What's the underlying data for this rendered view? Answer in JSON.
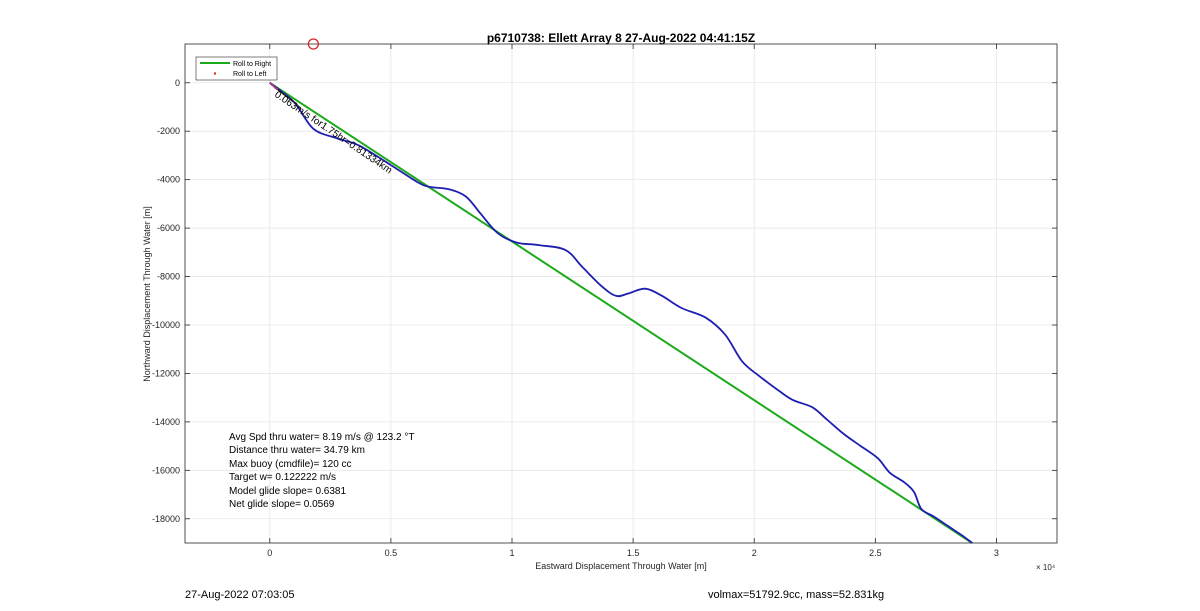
{
  "chart_data": {
    "type": "line",
    "title": "p6710738: Ellett Array 8 27-Aug-2022 04:41:15Z",
    "xlabel": "Eastward Displacement Through Water [m]",
    "ylabel": "Northward Displacement Through Water [m]",
    "x_exponent_label": "× 10⁴",
    "xlim": [
      -3500,
      32500
    ],
    "ylim": [
      -19000,
      1600
    ],
    "grid": true,
    "x_ticks": [
      0,
      5000,
      10000,
      15000,
      20000,
      25000,
      30000
    ],
    "x_tick_labels": [
      "0",
      "0.5",
      "1",
      "1.5",
      "2",
      "2.5",
      "3"
    ],
    "y_ticks": [
      0,
      -2000,
      -4000,
      -6000,
      -8000,
      -10000,
      -12000,
      -14000,
      -16000,
      -18000
    ],
    "y_tick_labels": [
      "0",
      "-2000",
      "-4000",
      "-6000",
      "-8000",
      "-10000",
      "-12000",
      "-14000",
      "-16000",
      "-18000"
    ],
    "legend": {
      "placement": "top-left",
      "entries": [
        {
          "label": "Roll to Right",
          "color": "#1aaa1a",
          "style": "line"
        },
        {
          "label": "Roll to Left",
          "color": "#d62728",
          "style": "dot"
        }
      ]
    },
    "series": [
      {
        "color": "#1aaa1a",
        "x": [
          0,
          29000
        ],
        "y": [
          0,
          -19000
        ]
      },
      {
        "color": "#1e1eb0",
        "x": [
          0,
          1000,
          1800,
          2800,
          3700,
          5000,
          6100,
          6600,
          7400,
          8100,
          8700,
          9400,
          10200,
          11100,
          12200,
          12900,
          13700,
          14300,
          14800,
          15500,
          16200,
          17000,
          18000,
          18800,
          19500,
          20200,
          21000,
          21600,
          22400,
          23000,
          23700,
          24400,
          25100,
          25600,
          26200,
          26600,
          26900,
          27400,
          28000,
          28600,
          29000
        ],
        "y": [
          0,
          -800,
          -1900,
          -2300,
          -2600,
          -3400,
          -4100,
          -4300,
          -4400,
          -4700,
          -5400,
          -6200,
          -6600,
          -6700,
          -6900,
          -7600,
          -8400,
          -8800,
          -8700,
          -8500,
          -8800,
          -9300,
          -9700,
          -10400,
          -11500,
          -12100,
          -12700,
          -13100,
          -13400,
          -13900,
          -14500,
          -15000,
          -15500,
          -16100,
          -16500,
          -16900,
          -17600,
          -17900,
          -18300,
          -18700,
          -19000
        ]
      }
    ],
    "annotations": {
      "drift_text": "0.063m/s for1.75hr=0.81334km",
      "stats": [
        "Avg Spd thru water=  8.19 m/s @ 123.2 °T",
        "Distance thru water= 34.79 km",
        "Max buoy (cmdfile)= 120 cc",
        "Target w= 0.122222 m/s",
        "Model glide slope= 0.6381",
        "Net glide slope= 0.0569"
      ],
      "marker": {
        "x": 1800,
        "y": 1600,
        "color": "#d62728"
      }
    }
  },
  "footer": {
    "left": "27-Aug-2022 07:03:05",
    "right": "volmax=51792.9cc, mass=52.831kg"
  }
}
